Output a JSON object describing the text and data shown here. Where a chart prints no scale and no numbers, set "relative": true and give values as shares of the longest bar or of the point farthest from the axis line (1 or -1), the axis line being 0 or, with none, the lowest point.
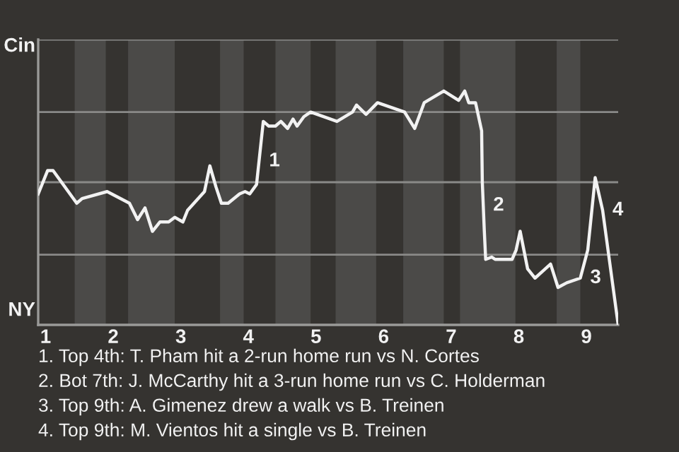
{
  "chart_data": {
    "type": "line",
    "relative": true,
    "x": [
      0.89,
      1.03,
      1.11,
      1.46,
      1.54,
      1.91,
      2.24,
      2.36,
      2.47,
      2.58,
      2.69,
      2.82,
      2.91,
      3.03,
      3.1,
      3.35,
      3.43,
      3.52,
      3.6,
      3.7,
      3.87,
      3.95,
      4.02,
      4.12,
      4.22,
      4.3,
      4.4,
      4.48,
      4.58,
      4.66,
      4.72,
      4.82,
      4.92,
      5.31,
      5.54,
      5.6,
      5.74,
      5.91,
      6.31,
      6.46,
      6.6,
      6.89,
      7.11,
      7.2,
      7.26,
      7.36,
      7.45,
      7.46,
      7.49,
      7.51,
      7.6,
      7.65,
      7.9,
      7.96,
      8.02,
      8.13,
      8.24,
      8.47,
      8.58,
      8.71,
      8.91,
      9.02,
      9.13,
      9.24,
      9.47
    ],
    "series": [
      {
        "color": "#f2f2f2",
        "values": [
          0.56,
          0.66,
          0.66,
          0.52,
          0.54,
          0.57,
          0.52,
          0.45,
          0.5,
          0.4,
          0.44,
          0.44,
          0.46,
          0.44,
          0.49,
          0.57,
          0.68,
          0.59,
          0.52,
          0.52,
          0.56,
          0.57,
          0.56,
          0.6,
          0.87,
          0.85,
          0.85,
          0.87,
          0.84,
          0.88,
          0.85,
          0.89,
          0.91,
          0.87,
          0.91,
          0.94,
          0.9,
          0.95,
          0.91,
          0.84,
          0.95,
          1,
          0.96,
          1,
          0.95,
          0.95,
          0.83,
          0.61,
          0.4,
          0.28,
          0.29,
          0.28,
          0.28,
          0.32,
          0.4,
          0.24,
          0.2,
          0.26,
          0.16,
          0.18,
          0.2,
          0.32,
          0.63,
          0.49,
          0
        ]
      }
    ],
    "xlim": [
      0.89,
      9.47
    ],
    "xticks": [
      1,
      2,
      3,
      4,
      5,
      6,
      7,
      8,
      9
    ],
    "line_style": "solid",
    "marker": "none",
    "ref_lines": [
      {
        "axis": "y",
        "value": 0.3,
        "color": "#8a8a88"
      },
      {
        "axis": "y",
        "value": 0.61,
        "color": "#8a8a88"
      },
      {
        "axis": "y",
        "value": 0.91,
        "color": "#8a8a88"
      },
      {
        "axis": "y",
        "value": 1.22,
        "color": "#8a8a88"
      }
    ],
    "bands": [
      {
        "axis": "x",
        "from": 1.43,
        "to": 1.89,
        "color": "#4b4a48"
      },
      {
        "axis": "x",
        "from": 2.22,
        "to": 2.91,
        "color": "#4b4a48"
      },
      {
        "axis": "x",
        "from": 3.58,
        "to": 3.93,
        "color": "#4b4a48"
      },
      {
        "axis": "x",
        "from": 4.4,
        "to": 4.92,
        "color": "#4b4a48"
      },
      {
        "axis": "x",
        "from": 5.29,
        "to": 5.89,
        "color": "#4b4a48"
      },
      {
        "axis": "x",
        "from": 6.29,
        "to": 6.89,
        "color": "#4b4a48"
      },
      {
        "axis": "x",
        "from": 7.13,
        "to": 7.95,
        "color": "#4b4a48"
      },
      {
        "axis": "x",
        "from": 8.56,
        "to": 8.91,
        "color": "#4b4a48"
      }
    ],
    "annotations": [
      "Cin",
      "NY",
      {
        "text": "1",
        "x": 4.16,
        "y": 0.7
      },
      {
        "text": "2",
        "x": 7.475,
        "y": 0.51
      },
      {
        "text": "3",
        "x": 8.91,
        "y": 0.2
      },
      {
        "text": "4",
        "x": 9.24,
        "y": 0.49
      },
      "1. Top 4th: T. Pham hit a 2-run home run vs N. Cortes",
      "2. Bot 7th: J. McCarthy hit a 3-run home run vs C. Holderman",
      "3. Top 9th: A. Gimenez drew a walk vs B. Treinen",
      "4. Top 9th: M. Vientos hit a single vs B. Treinen"
    ]
  }
}
